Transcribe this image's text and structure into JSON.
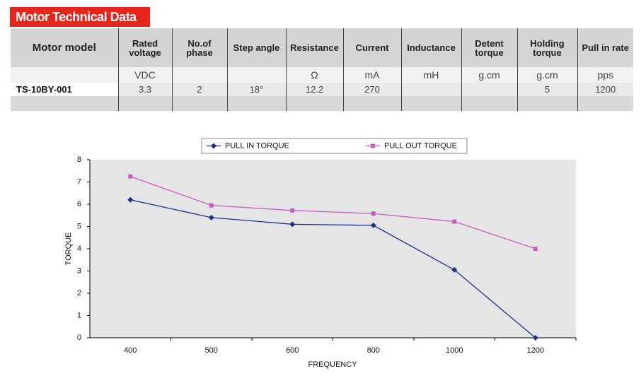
{
  "header": {
    "title": "Motor Technical Data"
  },
  "table": {
    "model_header": "Motor model",
    "columns": [
      {
        "name": "Rated voltage",
        "unit": "VDC"
      },
      {
        "name": "No.of phase"
      },
      {
        "name": "Step angle"
      },
      {
        "name": "Resistance",
        "unit": "Ω"
      },
      {
        "name": "Current",
        "unit": "mA"
      },
      {
        "name": "Inductance",
        "unit": "mH"
      },
      {
        "name": "Detent torque",
        "unit": "g.cm"
      },
      {
        "name": "Holding torque",
        "unit": "g.cm"
      },
      {
        "name": "Pull in rate",
        "unit": "pps"
      }
    ],
    "rows": [
      {
        "model": "TS-10BY-001",
        "values": [
          "3.3",
          "2",
          "18°",
          "12.2",
          "270",
          "",
          "",
          "5",
          "1200"
        ]
      }
    ]
  },
  "chart_data": {
    "type": "line",
    "x_label": "FREQUENCY",
    "y_label": "TORQUE",
    "categories": [
      "400",
      "500",
      "600",
      "800",
      "1000",
      "1200"
    ],
    "series": [
      {
        "name": "PULL IN TORQUE",
        "color": "#1c2f8c",
        "marker": "diamond",
        "values": [
          6.2,
          5.4,
          5.1,
          5.05,
          3.05,
          0
        ]
      },
      {
        "name": "PULL OUT TORQUE",
        "color": "#c35fc3",
        "marker": "square",
        "values": [
          7.25,
          5.95,
          5.72,
          5.58,
          5.22,
          4.0
        ]
      }
    ],
    "ylim": [
      0,
      8
    ],
    "yticks": [
      0,
      1,
      2,
      3,
      4,
      5,
      6,
      7,
      8
    ],
    "grid": false,
    "legend": "top"
  }
}
